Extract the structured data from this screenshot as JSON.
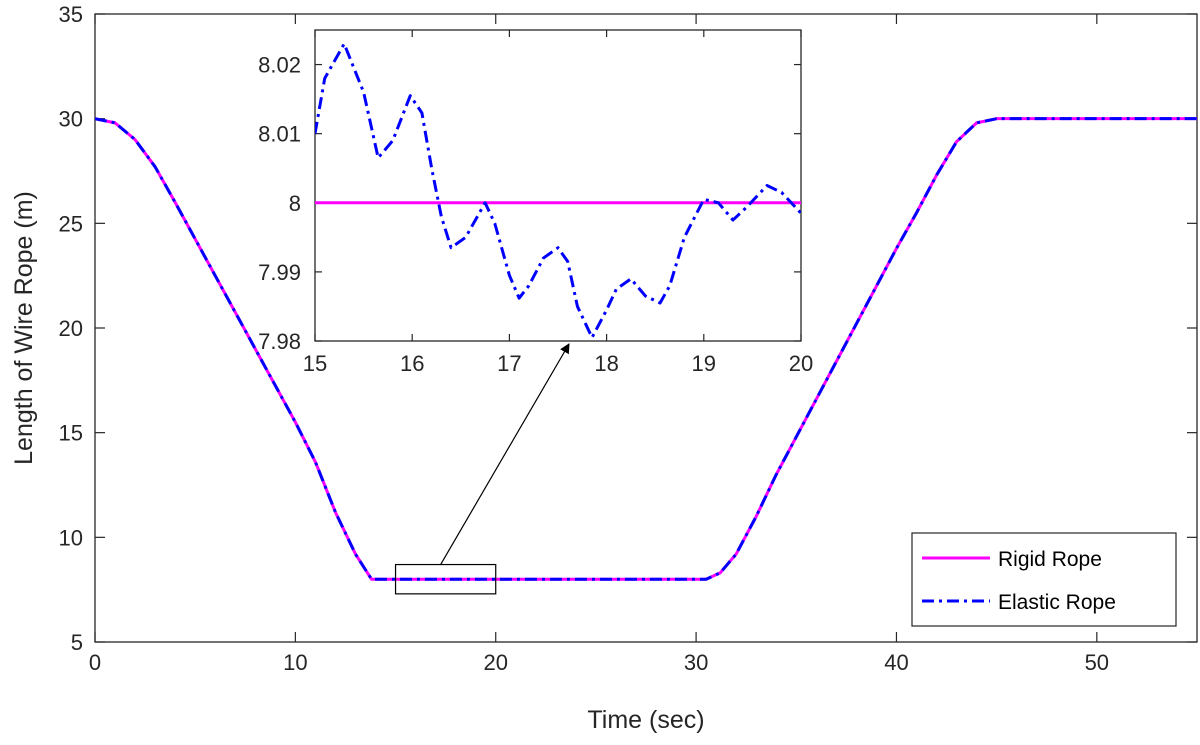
{
  "chart_data": {
    "main": {
      "type": "line",
      "xlabel": "Time (sec)",
      "ylabel": "Length of Wire Rope (m)",
      "xlim": [
        0,
        55
      ],
      "ylim": [
        5,
        35
      ],
      "xticks": [
        0,
        10,
        20,
        30,
        40,
        50
      ],
      "yticks": [
        5,
        10,
        15,
        20,
        25,
        30,
        35
      ],
      "grid": false,
      "legend_position": "bottom-right",
      "series": [
        {
          "name": "Rigid Rope",
          "color": "#ff00ff",
          "line_style": "solid",
          "x": [
            0,
            1,
            2,
            3,
            4,
            6,
            8,
            10,
            11,
            12,
            13,
            13.8,
            15,
            20,
            25,
            30,
            30.5,
            31.2,
            32,
            33,
            34,
            36,
            38,
            40,
            41,
            42,
            43,
            44,
            45,
            50,
            55
          ],
          "y": [
            30,
            29.8,
            29.0,
            27.7,
            26.0,
            22.5,
            19.0,
            15.5,
            13.6,
            11.2,
            9.2,
            8.0,
            8.0,
            8.0,
            8.0,
            8.0,
            8.0,
            8.3,
            9.2,
            11.0,
            13.0,
            16.6,
            20.2,
            23.8,
            25.5,
            27.3,
            28.9,
            29.8,
            30.0,
            30.0,
            30.0
          ]
        },
        {
          "name": "Elastic Rope",
          "color": "#0000ff",
          "line_style": "dash-dot",
          "x": [
            0,
            1,
            2,
            3,
            4,
            6,
            8,
            10,
            11,
            12,
            13,
            13.8,
            15,
            20,
            25,
            30,
            30.5,
            31.2,
            32,
            33,
            34,
            36,
            38,
            40,
            41,
            42,
            43,
            44,
            45,
            50,
            55
          ],
          "y": [
            30,
            29.8,
            29.0,
            27.7,
            26.0,
            22.5,
            19.0,
            15.5,
            13.6,
            11.2,
            9.2,
            8.0,
            8.0,
            8.0,
            8.0,
            8.0,
            8.0,
            8.3,
            9.2,
            11.0,
            13.0,
            16.6,
            20.2,
            23.8,
            25.5,
            27.3,
            28.9,
            29.8,
            30.0,
            30.0,
            30.0
          ]
        }
      ],
      "zoom_box": {
        "x": [
          15,
          20
        ],
        "y": [
          7.3,
          8.7
        ]
      }
    },
    "inset": {
      "type": "line",
      "xlim": [
        15,
        20
      ],
      "ylim": [
        7.98,
        8.025
      ],
      "xticks": [
        15,
        16,
        17,
        18,
        19,
        20
      ],
      "yticks": [
        7.98,
        7.99,
        8,
        8.01,
        8.02
      ],
      "ytick_labels": [
        "7.98",
        "7.99",
        "8",
        "8.01",
        "8.02"
      ],
      "series": [
        {
          "name": "Rigid Rope",
          "color": "#ff00ff",
          "line_style": "solid",
          "x": [
            15,
            20
          ],
          "y": [
            8.0,
            8.0
          ]
        },
        {
          "name": "Elastic Rope",
          "color": "#0000ff",
          "line_style": "dash-dot",
          "x": [
            15,
            15.1,
            15.3,
            15.5,
            15.65,
            15.8,
            15.98,
            16.1,
            16.2,
            16.3,
            16.4,
            16.55,
            16.75,
            16.85,
            17.0,
            17.1,
            17.2,
            17.35,
            17.5,
            17.6,
            17.7,
            17.85,
            18.0,
            18.1,
            18.25,
            18.4,
            18.55,
            18.65,
            18.8,
            19.0,
            19.15,
            19.3,
            19.45,
            19.65,
            19.8,
            20.0
          ],
          "y": [
            8.01,
            8.018,
            8.023,
            8.016,
            8.0065,
            8.009,
            8.0155,
            8.013,
            8.005,
            7.998,
            7.9935,
            7.995,
            8.0,
            7.997,
            7.9895,
            7.9862,
            7.988,
            7.992,
            7.9935,
            7.9915,
            7.985,
            7.9805,
            7.9845,
            7.9875,
            7.989,
            7.9865,
            7.9855,
            7.988,
            7.995,
            8.0005,
            8.0,
            7.9975,
            7.9995,
            8.0025,
            8.0015,
            7.9985
          ]
        }
      ]
    }
  }
}
